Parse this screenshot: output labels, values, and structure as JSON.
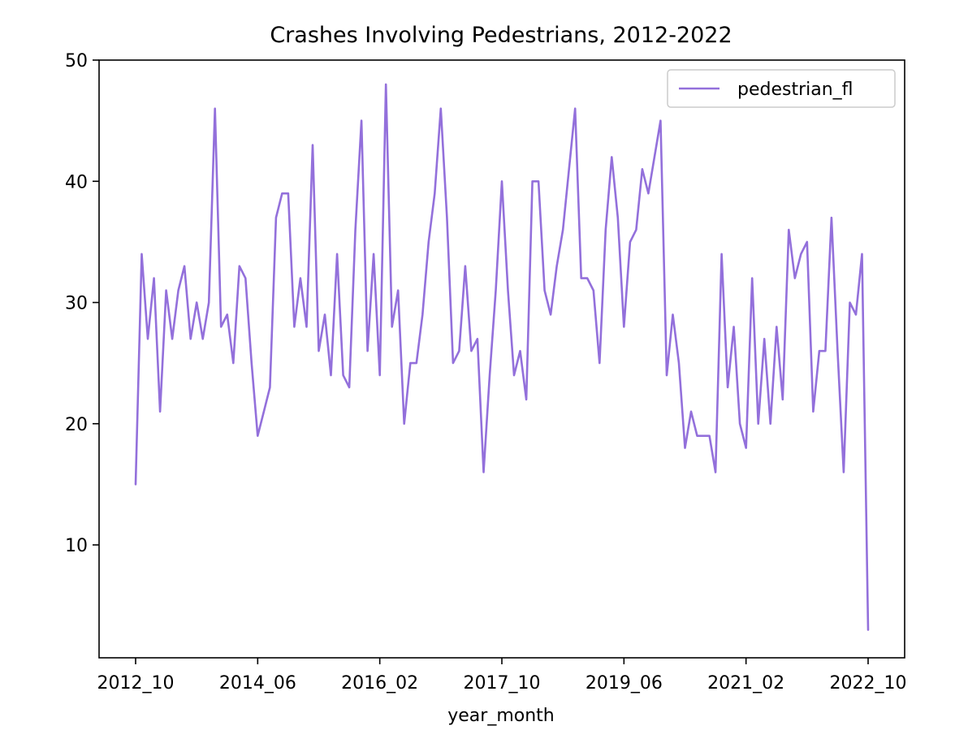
{
  "chart_data": {
    "type": "line",
    "title": "Crashes Involving Pedestrians, 2012-2022",
    "xlabel": "year_month",
    "ylabel": "",
    "x_tick_labels": [
      "2012_10",
      "2014_06",
      "2016_02",
      "2017_10",
      "2019_06",
      "2021_02",
      "2022_10"
    ],
    "x_tick_index": [
      0,
      20,
      40,
      60,
      80,
      100,
      120
    ],
    "y_ticks": [
      10,
      20,
      30,
      40,
      50
    ],
    "ylim": [
      2,
      50
    ],
    "xlim": [
      0,
      120
    ],
    "legend_position": "top-right",
    "grid": false,
    "series": [
      {
        "name": "pedestrian_fl",
        "color": "#9370DB",
        "values": [
          15,
          34,
          27,
          32,
          21,
          31,
          27,
          31,
          33,
          27,
          30,
          27,
          30,
          46,
          28,
          29,
          25,
          33,
          32,
          25,
          19,
          21,
          23,
          37,
          39,
          39,
          28,
          32,
          28,
          43,
          26,
          29,
          24,
          34,
          24,
          23,
          36,
          45,
          26,
          34,
          24,
          48,
          28,
          31,
          20,
          25,
          25,
          29,
          35,
          39,
          46,
          37,
          25,
          26,
          33,
          26,
          27,
          16,
          24,
          31,
          40,
          31,
          24,
          26,
          22,
          40,
          40,
          31,
          29,
          33,
          36,
          41,
          46,
          32,
          32,
          31,
          25,
          36,
          42,
          37,
          28,
          35,
          36,
          41,
          39,
          42,
          45,
          24,
          29,
          25,
          18,
          21,
          19,
          19,
          19,
          16,
          34,
          23,
          28,
          20,
          18,
          32,
          20,
          27,
          20,
          28,
          22,
          36,
          32,
          34,
          35,
          21,
          26,
          26,
          37,
          26,
          16,
          30,
          29,
          34,
          3
        ]
      }
    ]
  }
}
